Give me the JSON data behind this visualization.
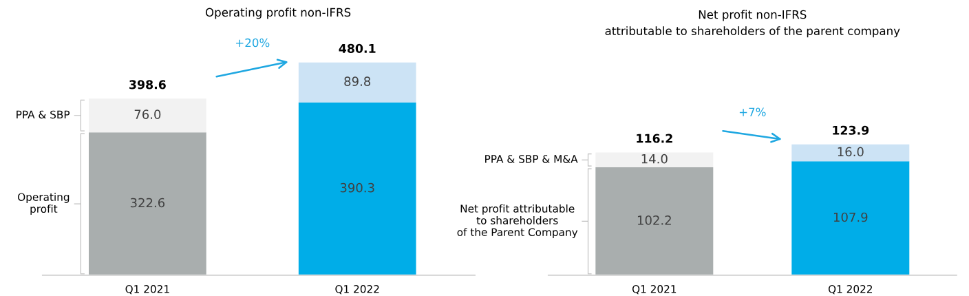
{
  "chart_data": [
    {
      "type": "bar",
      "stacked": true,
      "title": "Operating profit non-IFRS",
      "categories": [
        "Q1 2021",
        "Q1 2022"
      ],
      "tick_labels": "x",
      "grid": false,
      "legend": false,
      "series": [
        {
          "name": "Operating\nprofit",
          "colors": [
            "#a9aeae",
            "#00ade8"
          ],
          "values": [
            322.6,
            390.3
          ],
          "value_labels": [
            "322.6",
            "390.3"
          ]
        },
        {
          "name": "PPA & SBP",
          "colors": [
            "#f2f2f2",
            "#cce3f5"
          ],
          "values": [
            76.0,
            89.8
          ],
          "value_labels": [
            "76.0",
            "89.8"
          ]
        }
      ],
      "totals": [
        "398.6",
        "480.1"
      ],
      "annotations": [
        "+20%"
      ]
    },
    {
      "type": "bar",
      "stacked": true,
      "title": "Net profit non-IFRS\nattributable to shareholders of the parent company",
      "categories": [
        "Q1 2021",
        "Q1 2022"
      ],
      "tick_labels": "x",
      "grid": false,
      "legend": false,
      "series": [
        {
          "name": "Net profit attributable\nto shareholders\nof the Parent Company",
          "colors": [
            "#a9aeae",
            "#00ade8"
          ],
          "values": [
            102.2,
            107.9
          ],
          "value_labels": [
            "102.2",
            "107.9"
          ]
        },
        {
          "name": "PPA & SBP & M&A",
          "colors": [
            "#f2f2f2",
            "#cce3f5"
          ],
          "values": [
            14.0,
            16.0
          ],
          "value_labels": [
            "14.0",
            "16.0"
          ]
        }
      ],
      "totals": [
        "116.2",
        "123.9"
      ],
      "annotations": [
        "+7%"
      ]
    }
  ]
}
